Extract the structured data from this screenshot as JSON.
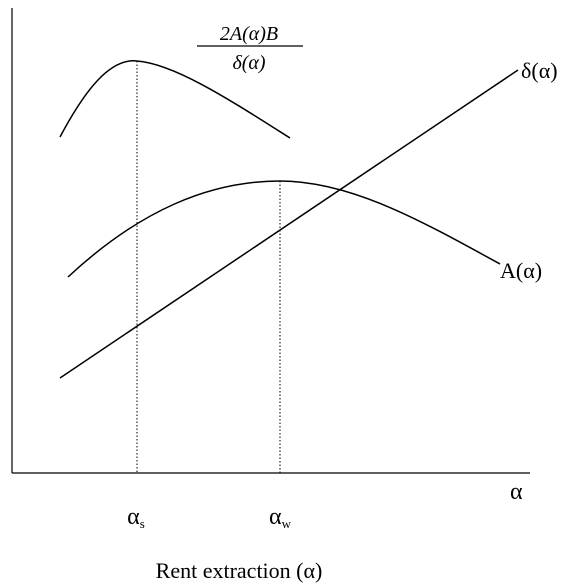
{
  "formula": {
    "numerator": "2A(α)B",
    "denominator": "δ(α)"
  },
  "curve_labels": {
    "delta": "δ(α)",
    "A": "A(α)"
  },
  "axis": {
    "x_symbol": "α",
    "x_title": "Rent extraction (α)"
  },
  "ticks": {
    "alpha_s": {
      "base": "α",
      "sub": "s"
    },
    "alpha_w": {
      "base": "α",
      "sub": "w"
    }
  }
}
